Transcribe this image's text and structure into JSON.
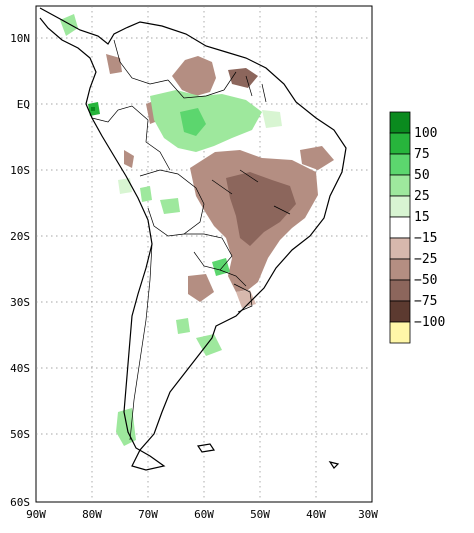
{
  "map": {
    "y_ticks": [
      "10N",
      "EQ",
      "10S",
      "20S",
      "30S",
      "40S",
      "50S",
      "60S"
    ],
    "x_ticks": [
      "90W",
      "80W",
      "70W",
      "60W",
      "50W",
      "40W",
      "30W"
    ],
    "grid": "dotted",
    "legend": {
      "placement": "right",
      "bins": [
        {
          "label": "100",
          "color": "#0a8a1e"
        },
        {
          "label": "75",
          "color": "#27b53c"
        },
        {
          "label": "50",
          "color": "#5cd66e"
        },
        {
          "label": "25",
          "color": "#9ee89d"
        },
        {
          "label": "15",
          "color": "#d8f5d2"
        },
        {
          "label": "−15",
          "color": "#ffffff"
        },
        {
          "label": "−25",
          "color": "#d7b8ad"
        },
        {
          "label": "−50",
          "color": "#b48e82"
        },
        {
          "label": "−75",
          "color": "#8c665c"
        },
        {
          "label": "−100",
          "color": "#5c3a30"
        },
        {
          "label": "",
          "color": "#fff7a8"
        }
      ]
    }
  }
}
